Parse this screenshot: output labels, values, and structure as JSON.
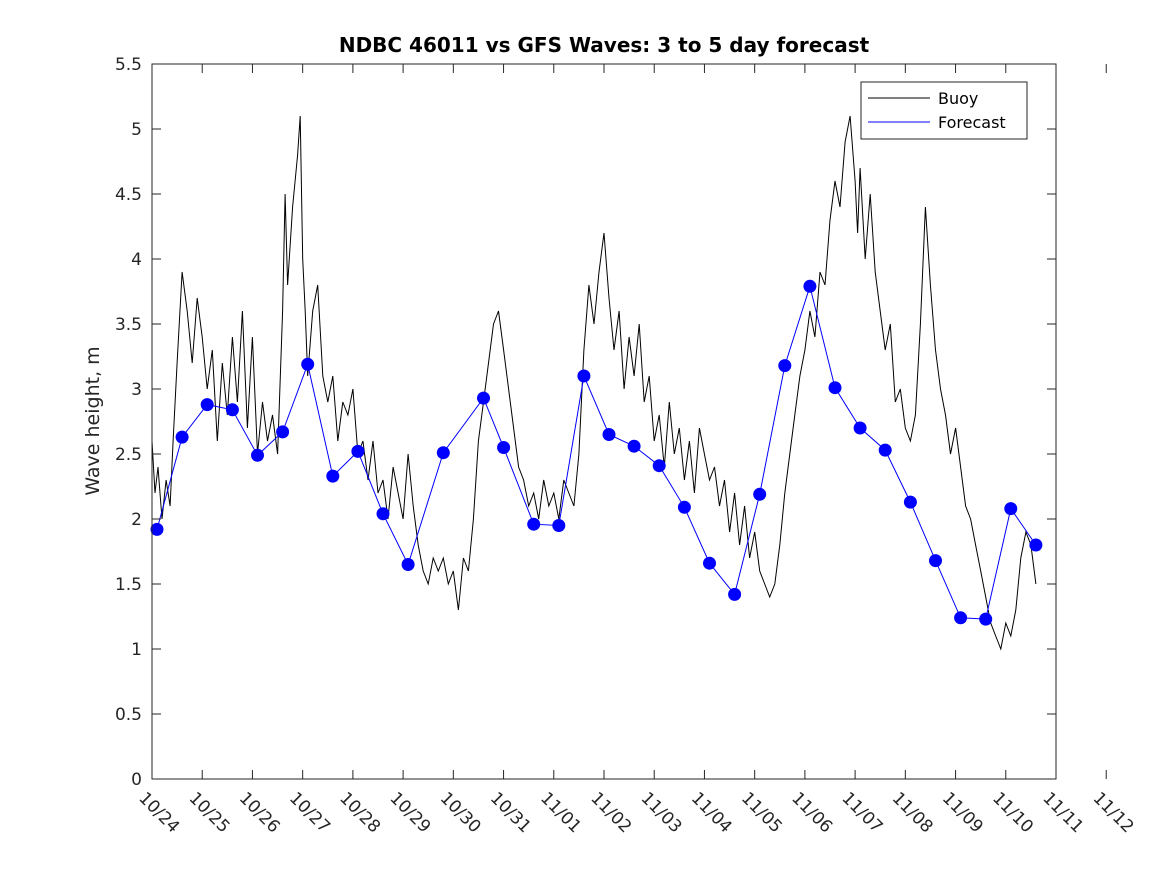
{
  "chart_data": {
    "type": "line",
    "title": "NDBC 46011 vs GFS Waves: 3 to 5 day forecast",
    "xlabel": "",
    "ylabel": "Wave height, m",
    "ylim": [
      0,
      5.5
    ],
    "xlim": [
      0,
      18
    ],
    "yticks": [
      0,
      0.5,
      1,
      1.5,
      2,
      2.5,
      3,
      3.5,
      4,
      4.5,
      5,
      5.5
    ],
    "ytick_labels": [
      "0",
      "0.5",
      "1",
      "1.5",
      "2",
      "2.5",
      "3",
      "3.5",
      "4",
      "4.5",
      "5",
      "5.5"
    ],
    "xtick_labels": [
      "10/24",
      "10/25",
      "10/26",
      "10/27",
      "10/28",
      "10/29",
      "10/30",
      "10/31",
      "11/01",
      "11/02",
      "11/03",
      "11/04",
      "11/05",
      "11/06",
      "11/07",
      "11/08",
      "11/09",
      "11/10",
      "11/11",
      "11/12"
    ],
    "grid": false,
    "legend": {
      "position": "top-right",
      "entries": [
        {
          "label": "Buoy",
          "color": "#000000"
        },
        {
          "label": "Forecast",
          "color": "#0000ff"
        }
      ]
    },
    "series": [
      {
        "name": "Buoy",
        "color": "#000000",
        "x": [
          0,
          0.06,
          0.12,
          0.2,
          0.28,
          0.36,
          0.42,
          0.5,
          0.6,
          0.7,
          0.8,
          0.9,
          1.0,
          1.1,
          1.2,
          1.3,
          1.4,
          1.5,
          1.6,
          1.7,
          1.8,
          1.9,
          2.0,
          2.1,
          2.2,
          2.3,
          2.4,
          2.5,
          2.6,
          2.65,
          2.7,
          2.8,
          2.9,
          2.95,
          3.0,
          3.05,
          3.1,
          3.2,
          3.3,
          3.4,
          3.5,
          3.6,
          3.7,
          3.8,
          3.9,
          4.0,
          4.1,
          4.2,
          4.3,
          4.4,
          4.5,
          4.6,
          4.7,
          4.8,
          4.9,
          5.0,
          5.1,
          5.2,
          5.3,
          5.4,
          5.5,
          5.6,
          5.7,
          5.8,
          5.9,
          6.0,
          6.1,
          6.2,
          6.3,
          6.4,
          6.5,
          6.6,
          6.7,
          6.8,
          6.9,
          7.0,
          7.1,
          7.2,
          7.3,
          7.4,
          7.5,
          7.6,
          7.7,
          7.8,
          7.9,
          8.0,
          8.1,
          8.2,
          8.3,
          8.4,
          8.5,
          8.6,
          8.7,
          8.8,
          8.9,
          9.0,
          9.1,
          9.2,
          9.3,
          9.4,
          9.5,
          9.6,
          9.7,
          9.8,
          9.9,
          10.0,
          10.1,
          10.2,
          10.3,
          10.4,
          10.5,
          10.6,
          10.7,
          10.8,
          10.9,
          11.0,
          11.1,
          11.2,
          11.3,
          11.4,
          11.5,
          11.6,
          11.7,
          11.8,
          11.9,
          12.0,
          12.1,
          12.2,
          12.3,
          12.4,
          12.5,
          12.6,
          12.7,
          12.8,
          12.9,
          13.0,
          13.1,
          13.2,
          13.3,
          13.4,
          13.5,
          13.6,
          13.7,
          13.8,
          13.9,
          14.0,
          14.05,
          14.1,
          14.2,
          14.3,
          14.4,
          14.5,
          14.6,
          14.7,
          14.8,
          14.9,
          15.0,
          15.1,
          15.2,
          15.3,
          15.4,
          15.5,
          15.6,
          15.7,
          15.8,
          15.9,
          16.0,
          16.1,
          16.2,
          16.3,
          16.4,
          16.5,
          16.6,
          16.7,
          16.8,
          16.9,
          17.0,
          17.1,
          17.2,
          17.3,
          17.4,
          17.5,
          17.6
        ],
        "y": [
          2.6,
          2.2,
          2.4,
          2.0,
          2.3,
          2.1,
          2.6,
          3.2,
          3.9,
          3.6,
          3.2,
          3.7,
          3.4,
          3.0,
          3.3,
          2.6,
          3.2,
          2.8,
          3.4,
          2.9,
          3.6,
          2.7,
          3.4,
          2.5,
          2.9,
          2.6,
          2.8,
          2.5,
          3.6,
          4.5,
          3.8,
          4.4,
          4.8,
          5.1,
          4.0,
          3.6,
          3.1,
          3.6,
          3.8,
          3.1,
          2.9,
          3.1,
          2.6,
          2.9,
          2.8,
          3.0,
          2.5,
          2.6,
          2.3,
          2.6,
          2.2,
          2.3,
          2.0,
          2.4,
          2.2,
          2.0,
          2.5,
          2.1,
          1.8,
          1.6,
          1.5,
          1.7,
          1.6,
          1.7,
          1.5,
          1.6,
          1.3,
          1.7,
          1.6,
          2.0,
          2.6,
          2.9,
          3.2,
          3.5,
          3.6,
          3.3,
          3.0,
          2.7,
          2.4,
          2.3,
          2.1,
          2.2,
          2.0,
          2.3,
          2.1,
          2.2,
          2.0,
          2.3,
          2.2,
          2.1,
          2.5,
          3.3,
          3.8,
          3.5,
          3.9,
          4.2,
          3.7,
          3.3,
          3.6,
          3.0,
          3.4,
          3.1,
          3.5,
          2.9,
          3.1,
          2.6,
          2.8,
          2.4,
          2.9,
          2.5,
          2.7,
          2.3,
          2.6,
          2.2,
          2.7,
          2.5,
          2.3,
          2.4,
          2.1,
          2.3,
          1.9,
          2.2,
          1.8,
          2.1,
          1.7,
          1.9,
          1.6,
          1.5,
          1.4,
          1.5,
          1.8,
          2.2,
          2.5,
          2.8,
          3.1,
          3.3,
          3.6,
          3.4,
          3.9,
          3.8,
          4.3,
          4.6,
          4.4,
          4.9,
          5.1,
          4.6,
          4.2,
          4.7,
          4.0,
          4.5,
          3.9,
          3.6,
          3.3,
          3.5,
          2.9,
          3.0,
          2.7,
          2.6,
          2.8,
          3.5,
          4.4,
          3.8,
          3.3,
          3.0,
          2.8,
          2.5,
          2.7,
          2.4,
          2.1,
          2.0,
          1.8,
          1.6,
          1.4,
          1.2,
          1.1,
          1.0,
          1.2,
          1.1,
          1.3,
          1.7,
          1.9,
          1.8,
          1.5
        ]
      },
      {
        "name": "Forecast",
        "color": "#0000ff",
        "x": [
          0.1,
          0.6,
          1.1,
          1.6,
          2.1,
          2.6,
          3.1,
          3.6,
          4.1,
          4.6,
          5.1,
          5.8,
          6.6,
          7.0,
          7.6,
          8.1,
          8.6,
          9.1,
          9.6,
          10.1,
          10.6,
          11.1,
          11.6,
          12.1,
          12.6,
          13.1,
          13.6,
          14.1,
          14.6,
          15.1,
          15.6,
          16.1,
          16.6,
          17.1,
          17.6
        ],
        "y": [
          1.92,
          2.63,
          2.88,
          2.84,
          2.49,
          2.67,
          3.19,
          2.33,
          2.52,
          2.04,
          1.65,
          2.51,
          2.93,
          2.55,
          1.96,
          1.95,
          3.1,
          2.65,
          2.56,
          2.41,
          2.09,
          1.66,
          1.42,
          2.19,
          3.18,
          3.79,
          3.01,
          2.7,
          2.53,
          2.13,
          1.68,
          1.24,
          1.23,
          2.08,
          1.8
        ]
      }
    ]
  }
}
